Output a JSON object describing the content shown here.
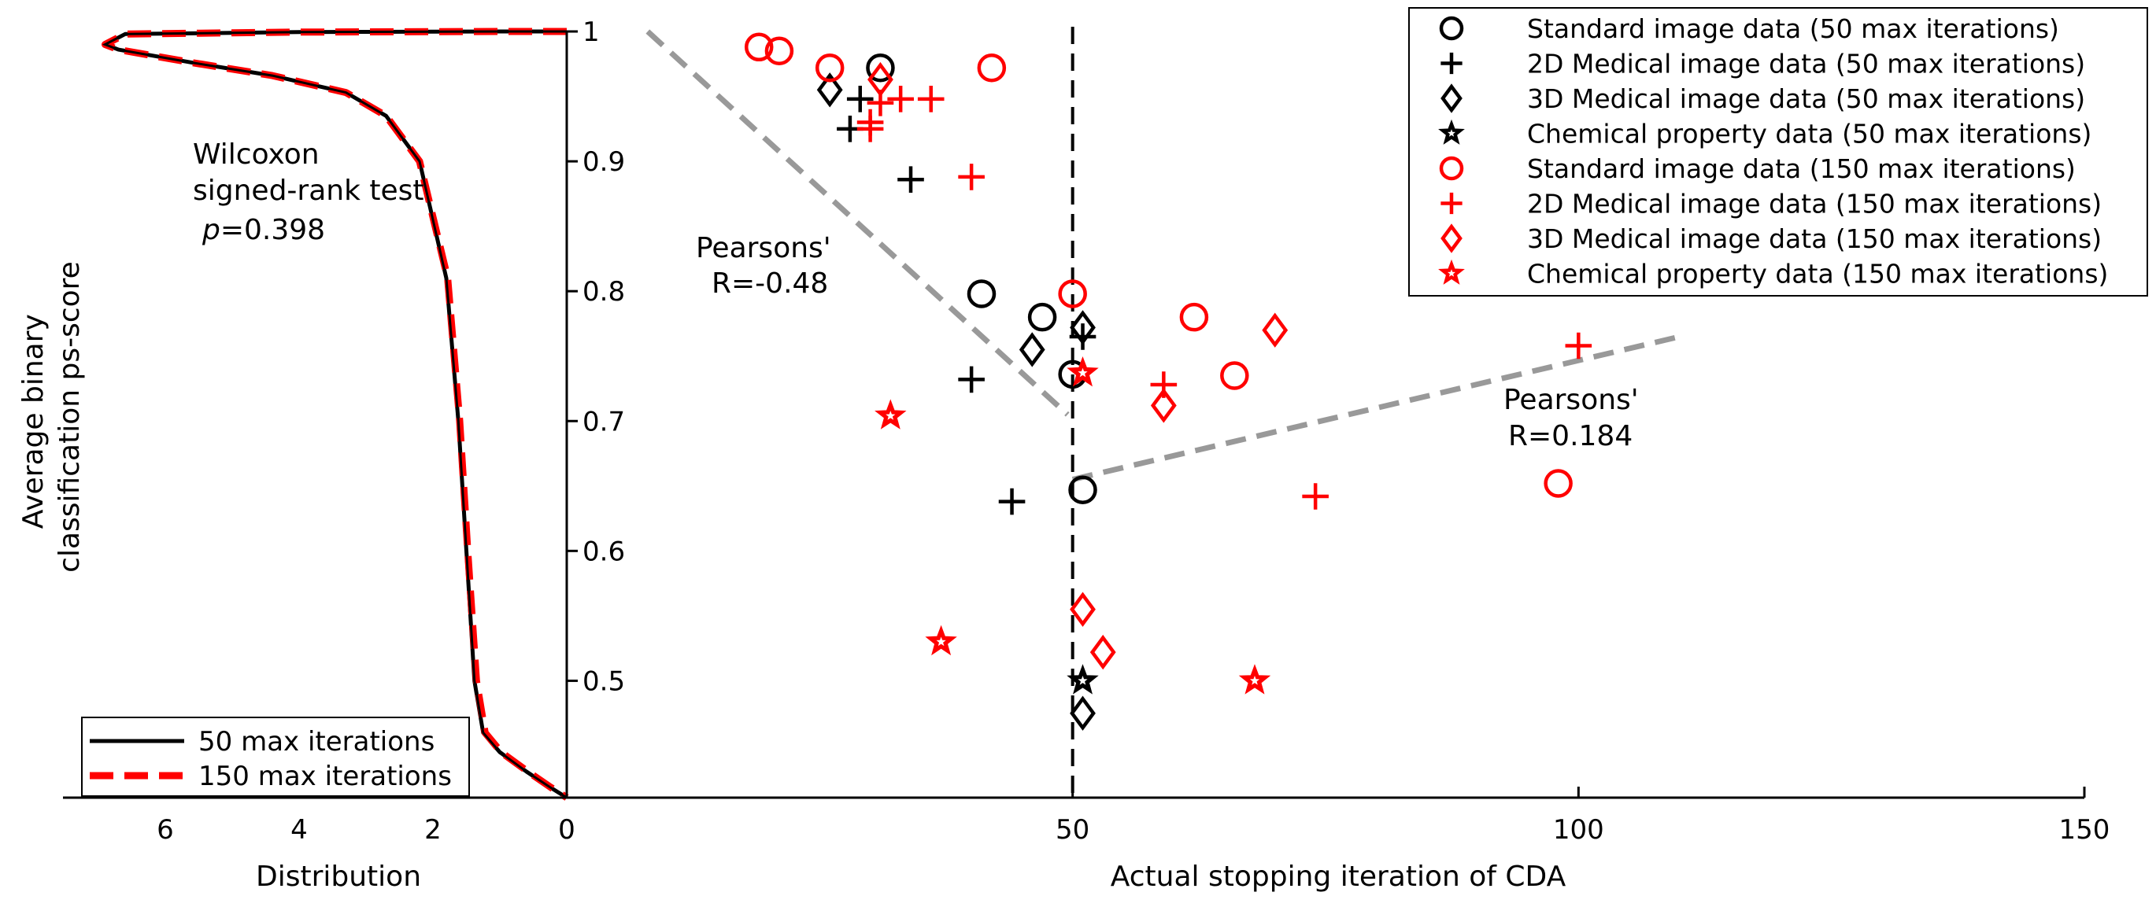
{
  "chart_data": [
    {
      "type": "line",
      "subtype": "horizontal density (distribution) plot sharing the y-axis of the scatter",
      "xlabel": "Distribution",
      "x_axis_reversed": true,
      "xlim": [
        0,
        7
      ],
      "xticks": [
        "6",
        "4",
        "2",
        "0"
      ],
      "xtick_values": [
        6,
        4,
        2,
        0
      ],
      "ylim": [
        0.41,
        1.0
      ],
      "legend_position": "bottom-left",
      "annotation": {
        "line1": "Wilcoxon",
        "line2": "signed-rank test",
        "p_symbol": "p",
        "p_value": "=0.398"
      },
      "series": [
        {
          "name": "50 max iterations",
          "color": "#000000",
          "style": "solid",
          "points": [
            [
              0,
              1.0
            ],
            [
              1,
              1.0
            ],
            [
              4,
              0.9995
            ],
            [
              6.6,
              0.998
            ],
            [
              6.9,
              0.99
            ],
            [
              6.7,
              0.986
            ],
            [
              5.6,
              0.976
            ],
            [
              4.4,
              0.966
            ],
            [
              3.3,
              0.953
            ],
            [
              2.7,
              0.935
            ],
            [
              2.2,
              0.9
            ],
            [
              1.8,
              0.81
            ],
            [
              1.62,
              0.7
            ],
            [
              1.5,
              0.6
            ],
            [
              1.38,
              0.5
            ],
            [
              1.25,
              0.46
            ],
            [
              1.0,
              0.445
            ],
            [
              0.6,
              0.43
            ],
            [
              0.25,
              0.418
            ],
            [
              0,
              0.41
            ]
          ]
        },
        {
          "name": "150 max iterations",
          "color": "#ff0000",
          "style": "dashed",
          "points": [
            [
              0,
              1.0
            ],
            [
              1,
              1.0
            ],
            [
              4,
              0.9995
            ],
            [
              6.6,
              0.998
            ],
            [
              6.9,
              0.99
            ],
            [
              6.7,
              0.986
            ],
            [
              5.6,
              0.976
            ],
            [
              4.4,
              0.966
            ],
            [
              3.3,
              0.953
            ],
            [
              2.7,
              0.935
            ],
            [
              2.2,
              0.9
            ],
            [
              1.78,
              0.81
            ],
            [
              1.6,
              0.7
            ],
            [
              1.48,
              0.6
            ],
            [
              1.35,
              0.5
            ],
            [
              1.22,
              0.46
            ],
            [
              0.98,
              0.445
            ],
            [
              0.58,
              0.43
            ],
            [
              0.24,
              0.418
            ],
            [
              0,
              0.41
            ]
          ]
        }
      ]
    },
    {
      "type": "scatter",
      "xlabel": "Actual stopping iteration of CDA",
      "ylabel_line1": "Average binary",
      "ylabel_line2": "classification ps-score",
      "xlim": [
        0,
        150
      ],
      "ylim": [
        0.41,
        1.0
      ],
      "xticks": [
        "0",
        "50",
        "100",
        "150"
      ],
      "xtick_values": [
        0,
        50,
        100,
        150
      ],
      "yticks": [
        "0.5",
        "0.6",
        "0.7",
        "0.8",
        "0.9",
        "1"
      ],
      "ytick_values": [
        0.5,
        0.6,
        0.7,
        0.8,
        0.9,
        1.0
      ],
      "legend_position": "top-right",
      "vertical_reference_line": {
        "x": 50,
        "style": "dashed",
        "color": "#000000"
      },
      "regression_lines": [
        {
          "label_line1": "Pearsons'",
          "label_line2": "R=-0.48",
          "from": [
            8,
            1.0
          ],
          "to": [
            49.5,
            0.705
          ],
          "color": "#999999"
        },
        {
          "label_line1": "Pearsons'",
          "label_line2": "R=0.184",
          "from": [
            50,
            0.655
          ],
          "to": [
            110,
            0.765
          ],
          "color": "#999999"
        }
      ],
      "series": [
        {
          "name": "Standard image data (50 max iterations)",
          "marker": "circle",
          "color": "#000000",
          "points": [
            [
              31,
              0.972
            ],
            [
              41,
              0.798
            ],
            [
              47,
              0.78
            ],
            [
              50,
              0.736
            ],
            [
              51,
              0.647
            ]
          ]
        },
        {
          "name": "2D Medical image data (50 max iterations)",
          "marker": "plus",
          "color": "#000000",
          "points": [
            [
              29,
              0.948
            ],
            [
              28,
              0.925
            ],
            [
              34,
              0.886
            ],
            [
              40,
              0.732
            ],
            [
              44,
              0.638
            ],
            [
              51,
              0.765
            ]
          ]
        },
        {
          "name": "3D Medical image data (50 max iterations)",
          "marker": "diamond",
          "color": "#000000",
          "points": [
            [
              26,
              0.955
            ],
            [
              46,
              0.755
            ],
            [
              51,
              0.772
            ],
            [
              51,
              0.475
            ]
          ]
        },
        {
          "name": "Chemical property data (50 max iterations)",
          "marker": "star",
          "color": "#000000",
          "points": [
            [
              51,
              0.5
            ]
          ]
        },
        {
          "name": "Standard image data (150 max iterations)",
          "marker": "circle",
          "color": "#ff0000",
          "points": [
            [
              19,
              0.988
            ],
            [
              21,
              0.985
            ],
            [
              26,
              0.972
            ],
            [
              42,
              0.972
            ],
            [
              50,
              0.798
            ],
            [
              62,
              0.78
            ],
            [
              66,
              0.735
            ],
            [
              98,
              0.652
            ]
          ]
        },
        {
          "name": "2D Medical image data (150 max iterations)",
          "marker": "plus",
          "color": "#ff0000",
          "points": [
            [
              31,
              0.945
            ],
            [
              33,
              0.948
            ],
            [
              36,
              0.948
            ],
            [
              30,
              0.93
            ],
            [
              30,
              0.925
            ],
            [
              40,
              0.888
            ],
            [
              59,
              0.728
            ],
            [
              74,
              0.642
            ],
            [
              100,
              0.758
            ]
          ]
        },
        {
          "name": "3D Medical image data (150 max iterations)",
          "marker": "diamond",
          "color": "#ff0000",
          "points": [
            [
              31,
              0.963
            ],
            [
              70,
              0.77
            ],
            [
              59,
              0.712
            ],
            [
              51,
              0.555
            ],
            [
              53,
              0.522
            ]
          ]
        },
        {
          "name": "Chemical property data (150 max iterations)",
          "marker": "star",
          "color": "#ff0000",
          "points": [
            [
              32,
              0.704
            ],
            [
              51,
              0.737
            ],
            [
              37,
              0.53
            ],
            [
              68,
              0.5
            ]
          ]
        }
      ]
    }
  ]
}
